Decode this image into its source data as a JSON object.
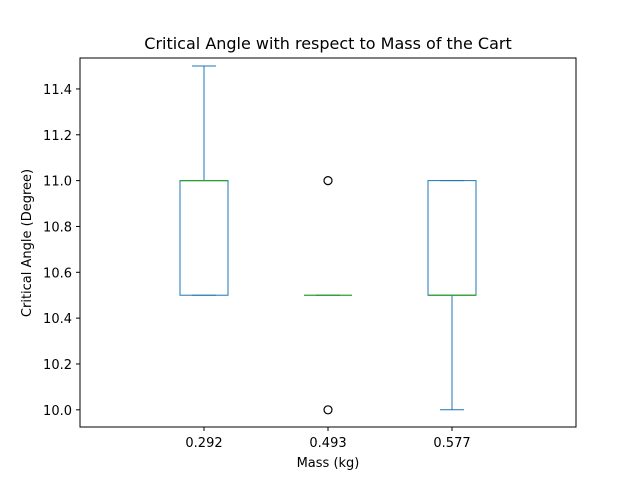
{
  "chart_data": {
    "type": "box",
    "title": "Critical Angle with respect to Mass of the Cart",
    "xlabel": "Mass (kg)",
    "ylabel": "Critical Angle (Degree)",
    "categories": [
      "0.292",
      "0.493",
      "0.577"
    ],
    "ylim": [
      9.925,
      11.535
    ],
    "yticks": [
      "10.0",
      "10.2",
      "10.4",
      "10.6",
      "10.8",
      "11.0",
      "11.2",
      "11.4"
    ],
    "grid": false,
    "boxes": [
      {
        "category": "0.292",
        "whisker_low": 10.5,
        "q1": 10.5,
        "median": 11.0,
        "q3": 11.0,
        "whisker_high": 11.5,
        "outliers": []
      },
      {
        "category": "0.493",
        "whisker_low": 10.5,
        "q1": 10.5,
        "median": 10.5,
        "q3": 10.5,
        "whisker_high": 10.5,
        "outliers": [
          10.0,
          11.0
        ]
      },
      {
        "category": "0.577",
        "whisker_low": 10.0,
        "q1": 10.5,
        "median": 10.5,
        "q3": 11.0,
        "whisker_high": 11.0,
        "outliers": []
      }
    ],
    "colors": {
      "box": "#1f77b4",
      "median": "#2ca02c",
      "outlier": "#000000",
      "axis": "#000000"
    }
  }
}
